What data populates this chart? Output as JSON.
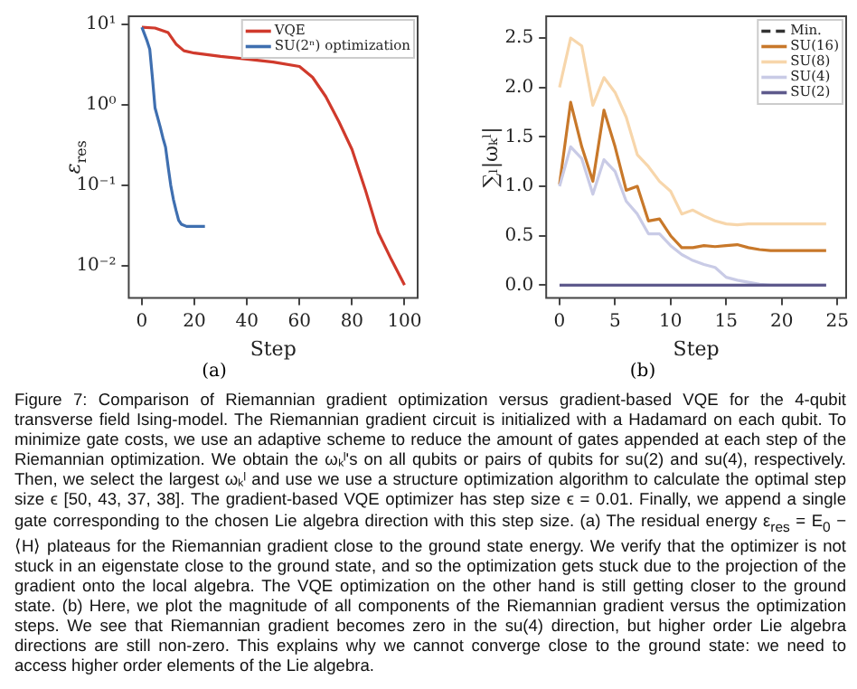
{
  "chart_data": [
    {
      "type": "line",
      "ylabel": "ε$_{res}$",
      "xlabel": "Step",
      "log": "y",
      "legend": "top right",
      "grid": false,
      "annotations": [
        "(a)",
        "Figure 7: Comparison of Riemannian gradient optimization versus gradient-based VQE for the 4-qubit transverse field Ising-model. The Riemannian gradient circuit is initialized with a Hadamard on each qubit. To minimize gate costs, we use an adaptive scheme to reduce the amount of gates appended at each step of the Riemannian optimization. We obtain the ωₖˡ's on all qubits or pairs of qubits for su(2) and su(4), respectively. Then, we select the largest ωₖˡ and use we use a structure optimization algorithm to calculate the optimal step size ϵ [50, 43, 37, 38]. The gradient-based VQE optimizer has step size ϵ = 0.01. Finally, we append a single gate corresponding to the chosen Lie algebra direction with this step size. (a) The residual energy ε$_{res}$ = E$_{0}$ − ⟨H⟩ plateaus for the Riemannian gradient close to the ground state energy. We verify that the optimizer is not stuck in an eigenstate close to the ground state, and so the optimization gets stuck due to the projection of the gradient onto the local algebra. The VQE optimization on the other hand is still getting closer to the ground state. (b) Here, we plot the magnitude of all components of the Riemannian gradient versus the optimization steps. We see that Riemannian gradient becomes zero in the su(4) direction, but higher order Lie algebra directions are still non-zero. This explains why we cannot converge close to the ground state: we need to access higher order elements of the Lie algebra."
      ],
      "xlim": [
        -5,
        105
      ],
      "xticks": [
        0,
        20,
        40,
        60,
        80,
        100
      ],
      "ylim": [
        0.004,
        12.6
      ],
      "yticks": [
        {
          "value": 0.01,
          "label": "10⁻²"
        },
        {
          "value": 0.1,
          "label": "10⁻¹"
        },
        {
          "value": 1,
          "label": "10⁰"
        },
        {
          "value": 10,
          "label": "10¹"
        }
      ],
      "series": [
        {
          "name": "VQE",
          "color": "#d03a2c",
          "x": [
            0,
            5,
            10,
            13,
            16,
            20,
            30,
            40,
            50,
            60,
            65,
            70,
            75,
            80,
            85,
            90,
            95,
            100
          ],
          "values": [
            9.2,
            9.0,
            7.9,
            5.7,
            4.7,
            4.4,
            4.0,
            3.7,
            3.4,
            3.0,
            2.2,
            1.27,
            0.62,
            0.28,
            0.09,
            0.026,
            0.012,
            0.0058
          ]
        },
        {
          "name": "SU(2ⁿ) optimization",
          "color": "#3f6fb0",
          "x": [
            0,
            2,
            3,
            4,
            5,
            7,
            8,
            9,
            10,
            11,
            12,
            13,
            14,
            15,
            17,
            24
          ],
          "values": [
            9.2,
            6.2,
            4.9,
            2.2,
            0.92,
            0.53,
            0.39,
            0.3,
            0.17,
            0.1,
            0.067,
            0.049,
            0.037,
            0.033,
            0.031,
            0.031
          ]
        }
      ]
    },
    {
      "type": "line",
      "ylabel": "∑ₗ|ωₖˡ|",
      "xlabel": "Step",
      "legend": "top right",
      "grid": false,
      "annotations": [
        "(b)"
      ],
      "x": [
        0,
        1,
        2,
        3,
        4,
        5,
        6,
        7,
        8,
        9,
        10,
        11,
        12,
        13,
        14,
        15,
        16,
        17,
        18,
        19,
        20,
        21,
        22,
        23,
        24
      ],
      "xlim": [
        -1.2,
        25.8
      ],
      "xticks": [
        0,
        5,
        10,
        15,
        20,
        25
      ],
      "ylim": [
        -0.13,
        2.72
      ],
      "yticks": [
        {
          "value": 0,
          "label": "0.0"
        },
        {
          "value": 0.5,
          "label": "0.5"
        },
        {
          "value": 1,
          "label": "1.0"
        },
        {
          "value": 1.5,
          "label": "1.5"
        },
        {
          "value": 2,
          "label": "2.0"
        },
        {
          "value": 2.5,
          "label": "2.5"
        }
      ],
      "series": [
        {
          "name": "Min.",
          "color": "#333333",
          "line_style": "dashed",
          "values": [
            null,
            null,
            null,
            null,
            null,
            null,
            null,
            null,
            null,
            null,
            null,
            null,
            null,
            null,
            null,
            null,
            null,
            null,
            null,
            null,
            null,
            null,
            null,
            null,
            null
          ]
        },
        {
          "name": "SU(16)",
          "color": "#c8782a",
          "values": [
            1.02,
            1.85,
            1.4,
            1.05,
            1.77,
            1.4,
            0.96,
            1.0,
            0.65,
            0.67,
            0.5,
            0.38,
            0.38,
            0.4,
            0.39,
            0.4,
            0.41,
            0.38,
            0.36,
            0.35,
            0.35,
            0.35,
            0.35,
            0.35,
            0.35
          ]
        },
        {
          "name": "SU(8)",
          "color": "#f7d6ab",
          "values": [
            2.0,
            2.5,
            2.42,
            1.82,
            2.1,
            1.95,
            1.7,
            1.32,
            1.2,
            1.05,
            0.95,
            0.72,
            0.76,
            0.7,
            0.65,
            0.62,
            0.61,
            0.62,
            0.62,
            0.62,
            0.62,
            0.62,
            0.62,
            0.62,
            0.62
          ]
        },
        {
          "name": "SU(4)",
          "color": "#c9cbe6",
          "values": [
            1.0,
            1.4,
            1.28,
            0.92,
            1.27,
            1.15,
            0.85,
            0.72,
            0.52,
            0.52,
            0.4,
            0.31,
            0.25,
            0.21,
            0.18,
            0.08,
            0.05,
            0.03,
            0.01,
            0,
            0,
            0,
            0,
            0,
            0
          ]
        },
        {
          "name": "SU(2)",
          "color": "#5e5a8c",
          "values": [
            0,
            0,
            0,
            0,
            0,
            0,
            0,
            0,
            0,
            0,
            0,
            0,
            0,
            0,
            0,
            0,
            0,
            0,
            0,
            0,
            0,
            0,
            0,
            0,
            0
          ]
        }
      ]
    }
  ]
}
